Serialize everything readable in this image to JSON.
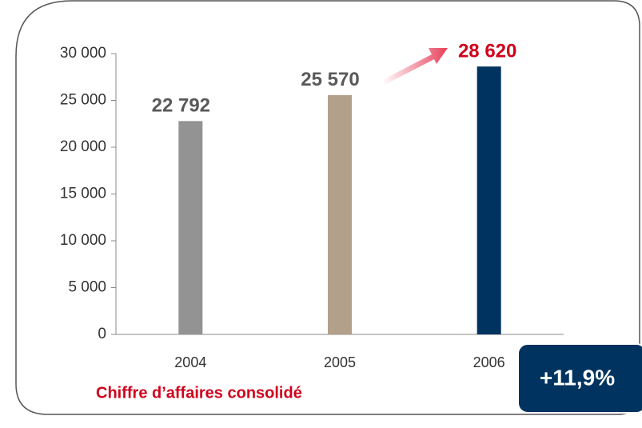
{
  "chart_data": {
    "type": "bar",
    "title": "Chiffre d’affaires consolidé",
    "annotation": "+11,9%",
    "categories": [
      "2004",
      "2005",
      "2006"
    ],
    "values": [
      22792,
      25570,
      28620
    ],
    "value_labels": [
      "22 792",
      "25 570",
      "28 620"
    ],
    "colors": [
      "#939393",
      "#b3a08a",
      "#00335f"
    ],
    "label_colors": [
      "#595959",
      "#595959",
      "#d0021b"
    ],
    "ylim": [
      0,
      30000
    ],
    "yticks": [
      0,
      {
        "value": 5000,
        "label": "5 000"
      },
      {
        "value": 10000,
        "label": "10 000"
      },
      {
        "value": 15000,
        "label": "15 000"
      },
      {
        "value": 20000,
        "label": "20 000"
      },
      {
        "value": 25000,
        "label": "25 000"
      },
      {
        "value": 30000,
        "label": "30 000"
      }
    ],
    "grid": false
  }
}
